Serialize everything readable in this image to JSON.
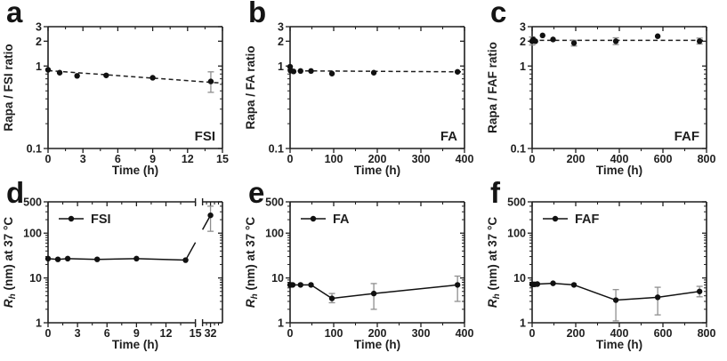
{
  "figure": {
    "background": "#ffffff",
    "axis_color": "#1f1f1f",
    "marker_color": "#111111",
    "error_color": "#8f8f8f",
    "trend_color": "#1f1f1f"
  },
  "chart_data": [
    {
      "type": "scatter",
      "label": "a",
      "xlabel": "Time (h)",
      "ylabel": "Rapa / FSI ratio",
      "annotation": "FSI",
      "ylog": true,
      "ylim": [
        0.1,
        3
      ],
      "yticks": [
        0.1,
        1,
        2,
        3
      ],
      "xlim": [
        0,
        15
      ],
      "xticks": [
        0,
        3,
        6,
        9,
        12,
        15
      ],
      "xminor": 1.5,
      "x": [
        0,
        1,
        2.5,
        5,
        9,
        14
      ],
      "y": [
        0.9,
        0.83,
        0.76,
        0.77,
        0.72,
        0.65
      ],
      "err": [
        null,
        null,
        null,
        null,
        null,
        [
          0.48,
          0.85
        ]
      ],
      "trend": {
        "x": [
          0,
          15
        ],
        "y": [
          0.88,
          0.62
        ]
      },
      "connect": false
    },
    {
      "type": "scatter",
      "label": "b",
      "xlabel": "Time (h)",
      "ylabel": "Rapa / FA ratio",
      "annotation": "FA",
      "ylog": true,
      "ylim": [
        0.1,
        3
      ],
      "yticks": [
        0.1,
        1,
        2,
        3
      ],
      "xlim": [
        0,
        400
      ],
      "xticks": [
        0,
        100,
        200,
        300,
        400
      ],
      "xminor": 50,
      "x": [
        0,
        1,
        8,
        24,
        48,
        96,
        192,
        384
      ],
      "y": [
        0.98,
        0.88,
        0.86,
        0.87,
        0.87,
        0.81,
        0.83,
        0.85
      ],
      "err": [
        null,
        null,
        null,
        null,
        null,
        null,
        null,
        null
      ],
      "trend": {
        "x": [
          0,
          400
        ],
        "y": [
          0.875,
          0.85
        ]
      },
      "connect": false
    },
    {
      "type": "scatter",
      "label": "c",
      "xlabel": "Time (h)",
      "ylabel": "Rapa / FAF ratio",
      "annotation": "FAF",
      "ylog": true,
      "ylim": [
        0.1,
        3
      ],
      "yticks": [
        0.1,
        1,
        2,
        3
      ],
      "xlim": [
        0,
        800
      ],
      "xticks": [
        0,
        200,
        400,
        600,
        800
      ],
      "xminor": 100,
      "x": [
        0,
        5,
        15,
        48,
        96,
        192,
        384,
        576,
        768
      ],
      "y": [
        2.0,
        2.1,
        2.0,
        2.35,
        2.1,
        1.9,
        2.0,
        2.3,
        2.0
      ],
      "err": [
        [
          1.8,
          2.25
        ],
        null,
        null,
        null,
        null,
        [
          1.75,
          2.05
        ],
        [
          1.82,
          2.2
        ],
        null,
        [
          1.85,
          2.18
        ]
      ],
      "trend": {
        "x": [
          0,
          800
        ],
        "y": [
          2.05,
          2.05
        ]
      },
      "connect": false
    },
    {
      "type": "line",
      "label": "d",
      "xlabel": "Time (h)",
      "ylabel_rich": [
        {
          "t": "R",
          "style": "italic"
        },
        {
          "t": "h",
          "style": "subitalic"
        },
        {
          "t": " (nm) at 37 °C",
          "style": "plain"
        }
      ],
      "legend": "FSI",
      "ylog": true,
      "ylim": [
        1,
        500
      ],
      "yticks": [
        1,
        10,
        100,
        500
      ],
      "xlim": [
        0,
        15
      ],
      "xticks": [
        0,
        3,
        6,
        9,
        12,
        15
      ],
      "xminor": 1.5,
      "break": {
        "xlim2": [
          28,
          38
        ],
        "xticks2": [
          32
        ],
        "xminor2": [
          30,
          34,
          36
        ]
      },
      "x": [
        0,
        1,
        2,
        5,
        9,
        14,
        32
      ],
      "y": [
        27,
        26,
        27,
        26,
        27,
        25,
        250
      ],
      "err": [
        null,
        null,
        null,
        null,
        null,
        null,
        [
          110,
          400
        ]
      ],
      "connect": true
    },
    {
      "type": "line",
      "label": "e",
      "xlabel": "Time (h)",
      "ylabel_rich": [
        {
          "t": "R",
          "style": "italic"
        },
        {
          "t": "h",
          "style": "subitalic"
        },
        {
          "t": " (nm) at 37 °C",
          "style": "plain"
        }
      ],
      "legend": "FA",
      "ylog": true,
      "ylim": [
        1,
        500
      ],
      "yticks": [
        1,
        10,
        100,
        500
      ],
      "xlim": [
        0,
        400
      ],
      "xticks": [
        0,
        100,
        200,
        300,
        400
      ],
      "xminor": 50,
      "x": [
        0,
        2,
        6,
        24,
        48,
        96,
        192,
        384
      ],
      "y": [
        7,
        7,
        7,
        7,
        7,
        3.5,
        4.5,
        7
      ],
      "err": [
        null,
        null,
        null,
        null,
        null,
        [
          2.8,
          4.5
        ],
        [
          2,
          7.5
        ],
        [
          3,
          11
        ]
      ],
      "connect": true
    },
    {
      "type": "line",
      "label": "f",
      "xlabel": "Time (h)",
      "ylabel_rich": [
        {
          "t": "R",
          "style": "italic"
        },
        {
          "t": "h",
          "style": "subitalic"
        },
        {
          "t": " (nm) at 37 °C",
          "style": "plain"
        }
      ],
      "legend": "FAF",
      "ylog": true,
      "ylim": [
        1,
        500
      ],
      "yticks": [
        1,
        10,
        100,
        500
      ],
      "xlim": [
        0,
        800
      ],
      "xticks": [
        0,
        200,
        400,
        600,
        800
      ],
      "xminor": 100,
      "x": [
        0,
        4,
        12,
        24,
        96,
        192,
        384,
        576,
        768
      ],
      "y": [
        7.2,
        7.2,
        7.2,
        7.3,
        7.6,
        7.0,
        3.2,
        3.7,
        5.0
      ],
      "err": [
        null,
        null,
        null,
        null,
        null,
        null,
        [
          1.1,
          5.5
        ],
        [
          1.5,
          6.2
        ],
        [
          3.8,
          6.5
        ]
      ],
      "connect": true
    }
  ]
}
